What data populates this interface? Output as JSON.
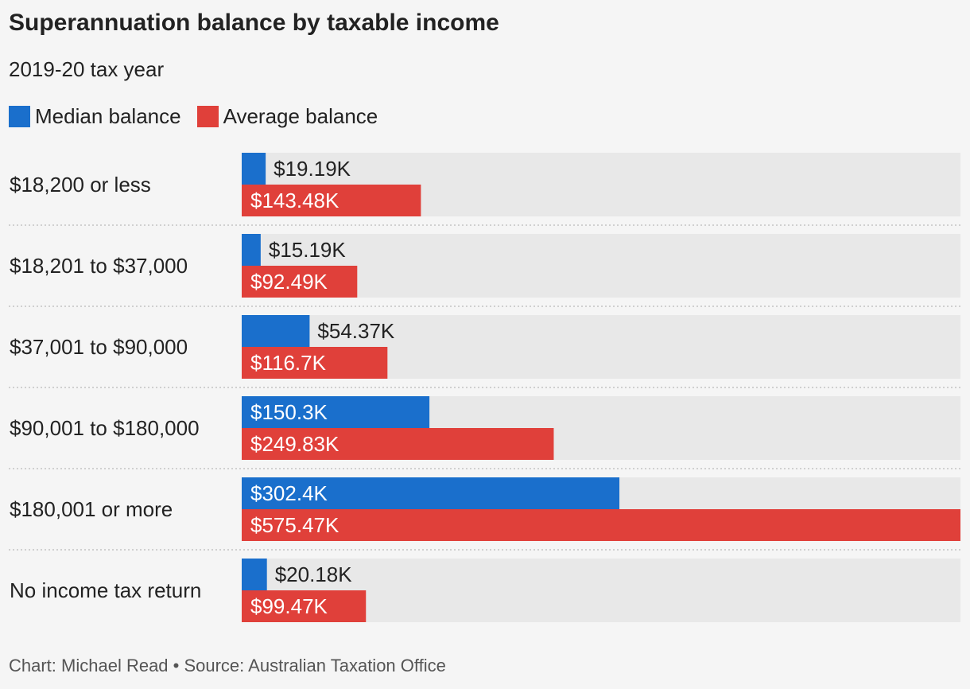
{
  "title": "Superannuation balance by taxable income",
  "subtitle": "2019-20 tax year",
  "footer": "Chart: Michael Read • Source: Australian Taxation Office",
  "colors": {
    "median": "#1a6fcc",
    "average": "#e0403a",
    "track": "#e8e8e8",
    "background": "#f5f5f5"
  },
  "legend": [
    {
      "label": "Median balance",
      "color": "#1a6fcc"
    },
    {
      "label": "Average balance",
      "color": "#e0403a"
    }
  ],
  "chart_data": {
    "type": "bar",
    "orientation": "horizontal",
    "categories": [
      "$18,200 or less",
      "$18,201 to $37,000",
      "$37,001 to $90,000",
      "$90,001 to $180,000",
      "$180,001 or more",
      "No income tax return"
    ],
    "series": [
      {
        "name": "Median balance",
        "values": [
          19.19,
          15.19,
          54.37,
          150.3,
          302.4,
          20.18
        ],
        "labels": [
          "$19.19K",
          "$15.19K",
          "$54.37K",
          "$150.3K",
          "$302.4K",
          "$20.18K"
        ]
      },
      {
        "name": "Average balance",
        "values": [
          143.48,
          92.49,
          116.7,
          249.83,
          575.47,
          99.47
        ],
        "labels": [
          "$143.48K",
          "$92.49K",
          "$116.7K",
          "$249.83K",
          "$575.47K",
          "$99.47K"
        ]
      }
    ],
    "xlim": [
      0,
      575.47
    ],
    "grid": false,
    "legend_position": "top-left"
  }
}
